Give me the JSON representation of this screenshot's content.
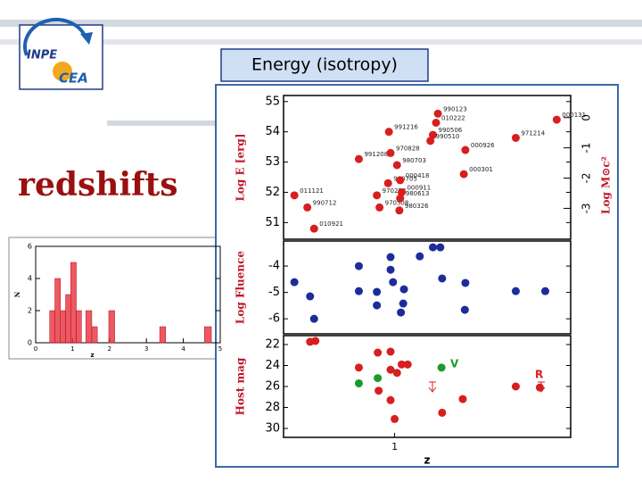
{
  "slide": {
    "title": "Energy (isotropy)",
    "heading": "redshifts",
    "logo": [
      "INPE",
      "CEA"
    ]
  },
  "chart_data": [
    {
      "type": "histogram",
      "x_label": "z",
      "y_label": "N",
      "color": "#e8303c",
      "bins": [
        0.38,
        0.52,
        0.67,
        0.81,
        0.95,
        1.1,
        1.24,
        1.36,
        1.52,
        1.67,
        1.98,
        2.14,
        3.36,
        3.52,
        4.57,
        4.76
      ],
      "counts": [
        2,
        4,
        2,
        3,
        5,
        2,
        0,
        2,
        1,
        0,
        2,
        0,
        1,
        0,
        1
      ],
      "xlim": [
        0,
        5
      ],
      "xticks": [
        0,
        1,
        2,
        3,
        4,
        5
      ],
      "ylim": [
        0,
        6
      ],
      "yticks": [
        0,
        2,
        4,
        6
      ]
    },
    {
      "type": "scatter",
      "y_label": "Log E [erg]",
      "y2_label": "Log M⊙c²",
      "xscale": "log1p",
      "xlim": [
        0,
        5
      ],
      "ylim": [
        50.45,
        55.2
      ],
      "yticks": [
        51,
        52,
        53,
        54,
        55
      ],
      "y2lim": [
        -4.02,
        0.73
      ],
      "y2ticks": [
        0,
        -1,
        -2,
        -3
      ],
      "series": [
        {
          "color": "#d81e1e",
          "x": [
            0.07,
            0.16,
            0.21,
            0.6,
            0.79,
            0.82,
            0.93,
            0.92,
            0.95,
            1.03,
            1.07,
            1.09,
            1.07,
            1.06,
            1.62,
            1.59,
            1.54,
            1.5,
            2.11,
            2.08,
            3.26,
            4.5
          ],
          "values": [
            51.9,
            51.5,
            50.8,
            53.1,
            51.9,
            51.5,
            54.0,
            52.3,
            53.3,
            52.9,
            52.4,
            52.0,
            51.8,
            51.4,
            54.6,
            54.3,
            53.9,
            53.7,
            53.4,
            52.6,
            53.8,
            54.4
          ],
          "point_labels": [
            "011121",
            "990712",
            "010921",
            "991208",
            "970228",
            "970508",
            "991216",
            "990705",
            "970828",
            "980703",
            "000418",
            "000911",
            "980613",
            "980326",
            "990123",
            "010222",
            "990506",
            "990510",
            "000926",
            "000301",
            "971214",
            "000131"
          ]
        }
      ]
    },
    {
      "type": "scatter",
      "y_label": "Log Fluence",
      "xscale": "log1p",
      "xlim": [
        0,
        5
      ],
      "ylim": [
        -6.57,
        -3.05
      ],
      "yticks": [
        -4,
        -5,
        -6
      ],
      "series": [
        {
          "color": "#1c2c9a",
          "x": [
            0.07,
            0.18,
            0.21,
            0.6,
            0.6,
            0.79,
            0.79,
            0.95,
            0.95,
            0.98,
            1.12,
            1.11,
            1.08,
            1.34,
            1.54,
            1.66,
            1.69,
            2.11,
            2.1,
            3.26,
            4.12
          ],
          "values": [
            -4.61,
            -5.15,
            -6.0,
            -4.0,
            -4.95,
            -4.98,
            -5.49,
            -3.66,
            -4.14,
            -4.61,
            -4.88,
            -5.42,
            -5.76,
            -3.63,
            -3.29,
            -3.29,
            -4.47,
            -4.64,
            -5.66,
            -4.95,
            -4.95
          ]
        }
      ]
    },
    {
      "type": "scatter",
      "x_label": "z",
      "y_label": "Host mag",
      "xscale": "log1p",
      "xlim": [
        0,
        5
      ],
      "xticks": [
        1
      ],
      "ylim": [
        30.85,
        21.15
      ],
      "yticks": [
        22,
        24,
        26,
        28,
        30
      ],
      "annotations": [
        "V",
        "R"
      ],
      "series": [
        {
          "color": "#d81e1e",
          "x": [
            0.18,
            0.22,
            0.6,
            0.8,
            0.95,
            0.95,
            1.03,
            1.09,
            1.17,
            0.81,
            0.95,
            1.0,
            1.69,
            2.06,
            3.26,
            3.95
          ],
          "values": [
            21.74,
            21.66,
            24.2,
            22.77,
            22.68,
            24.4,
            24.7,
            23.9,
            23.9,
            26.4,
            27.3,
            29.1,
            28.5,
            27.2,
            26.0,
            26.1
          ]
        },
        {
          "color": "#1a9a2a",
          "x": [
            0.6,
            0.8,
            1.68
          ],
          "values": [
            25.7,
            25.2,
            24.2
          ]
        }
      ]
    }
  ]
}
